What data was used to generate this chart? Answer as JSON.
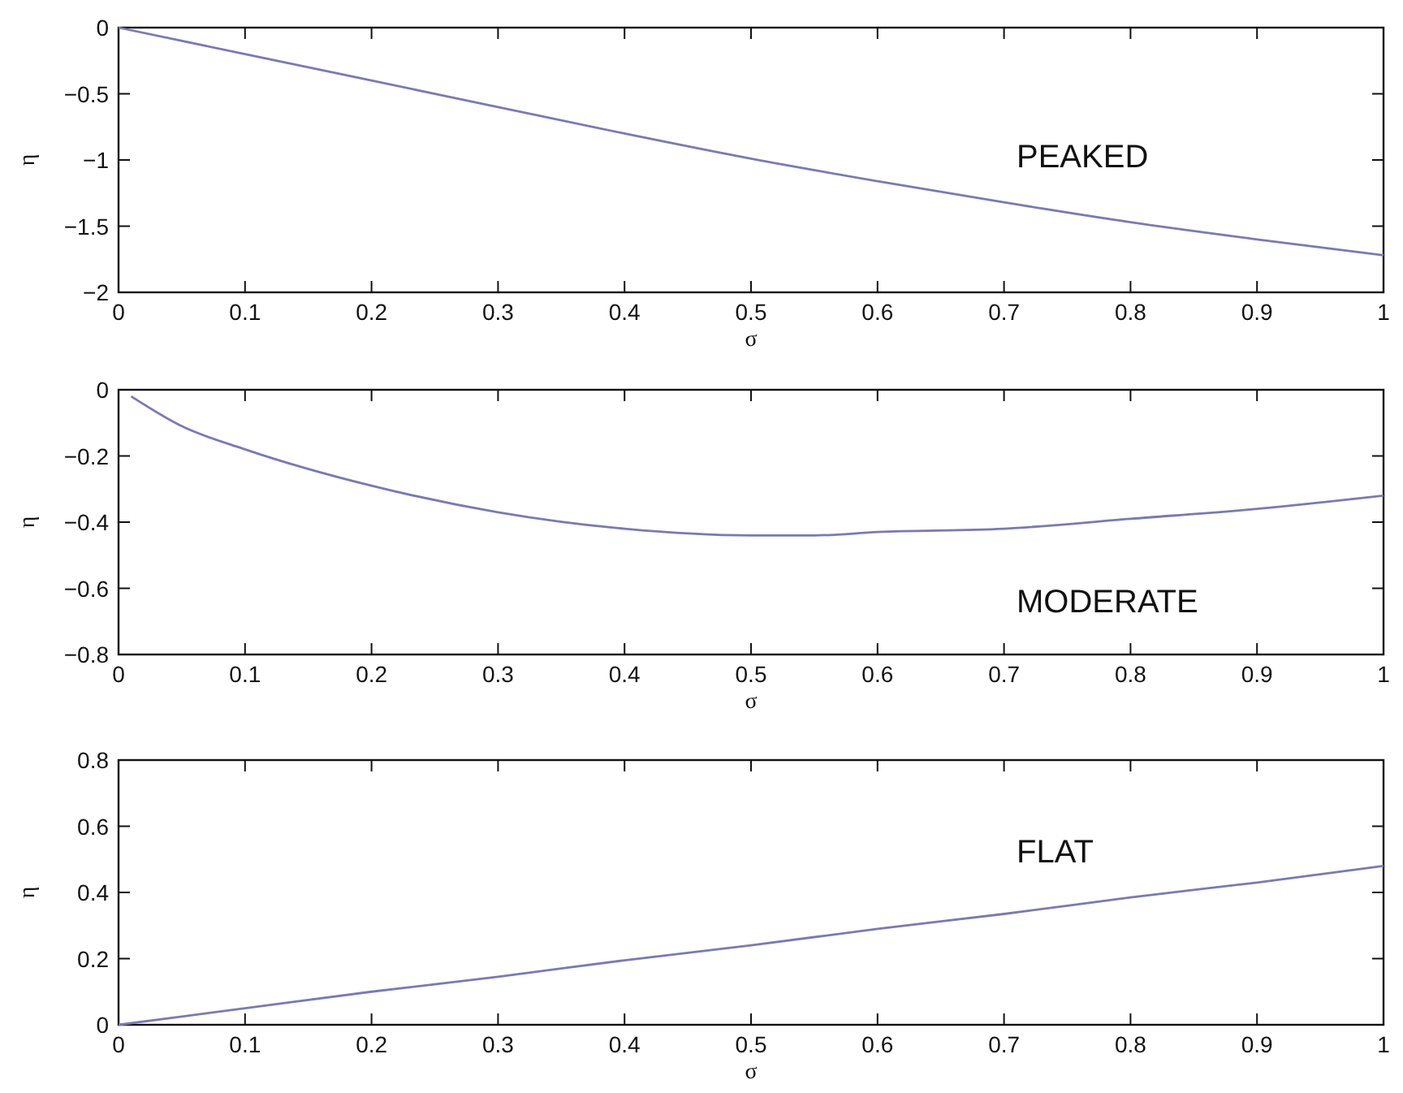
{
  "chart_data": [
    {
      "type": "line",
      "xlabel": "σ",
      "ylabel": "η",
      "annotations": [
        "PEAKED"
      ],
      "x": [
        0,
        0.1,
        0.2,
        0.3,
        0.4,
        0.5,
        0.6,
        0.7,
        0.8,
        0.9,
        1
      ],
      "series": [
        {
          "color": "#7b78b8",
          "values": [
            0,
            -0.2,
            -0.4,
            -0.6,
            -0.8,
            -0.99,
            -1.16,
            -1.32,
            -1.47,
            -1.6,
            -1.72
          ]
        }
      ],
      "xlim": [
        0,
        1
      ],
      "ylim": [
        -2,
        0
      ],
      "xticks": [
        0,
        0.1,
        0.2,
        0.3,
        0.4,
        0.5,
        0.6,
        0.7,
        0.8,
        0.9,
        1
      ],
      "yticks": [
        -2,
        -1.5,
        -1,
        -0.5,
        0
      ]
    },
    {
      "type": "line",
      "xlabel": "σ",
      "ylabel": "η",
      "annotations": [
        "MODERATE"
      ],
      "x": [
        0.01,
        0.05,
        0.1,
        0.2,
        0.3,
        0.4,
        0.5,
        0.55,
        0.6,
        0.7,
        0.8,
        0.9,
        1
      ],
      "series": [
        {
          "color": "#7b78b8",
          "values": [
            -0.02,
            -0.11,
            -0.18,
            -0.29,
            -0.37,
            -0.42,
            -0.44,
            -0.44,
            -0.43,
            -0.42,
            -0.39,
            -0.36,
            -0.32
          ]
        }
      ],
      "xlim": [
        0,
        1
      ],
      "ylim": [
        -0.8,
        0
      ],
      "xticks": [
        0,
        0.1,
        0.2,
        0.3,
        0.4,
        0.5,
        0.6,
        0.7,
        0.8,
        0.9,
        1
      ],
      "yticks": [
        -0.8,
        -0.6,
        -0.4,
        -0.2,
        0
      ]
    },
    {
      "type": "line",
      "xlabel": "σ",
      "ylabel": "η",
      "annotations": [
        "FLAT"
      ],
      "x": [
        0,
        0.1,
        0.2,
        0.3,
        0.4,
        0.5,
        0.6,
        0.7,
        0.8,
        0.9,
        1
      ],
      "series": [
        {
          "color": "#7b78b8",
          "values": [
            0,
            0.05,
            0.1,
            0.145,
            0.195,
            0.24,
            0.29,
            0.335,
            0.385,
            0.43,
            0.48
          ]
        }
      ],
      "xlim": [
        0,
        1
      ],
      "ylim": [
        0,
        0.8
      ],
      "xticks": [
        0,
        0.1,
        0.2,
        0.3,
        0.4,
        0.5,
        0.6,
        0.7,
        0.8,
        0.9,
        1
      ],
      "yticks": [
        0,
        0.2,
        0.4,
        0.6,
        0.8
      ]
    }
  ]
}
